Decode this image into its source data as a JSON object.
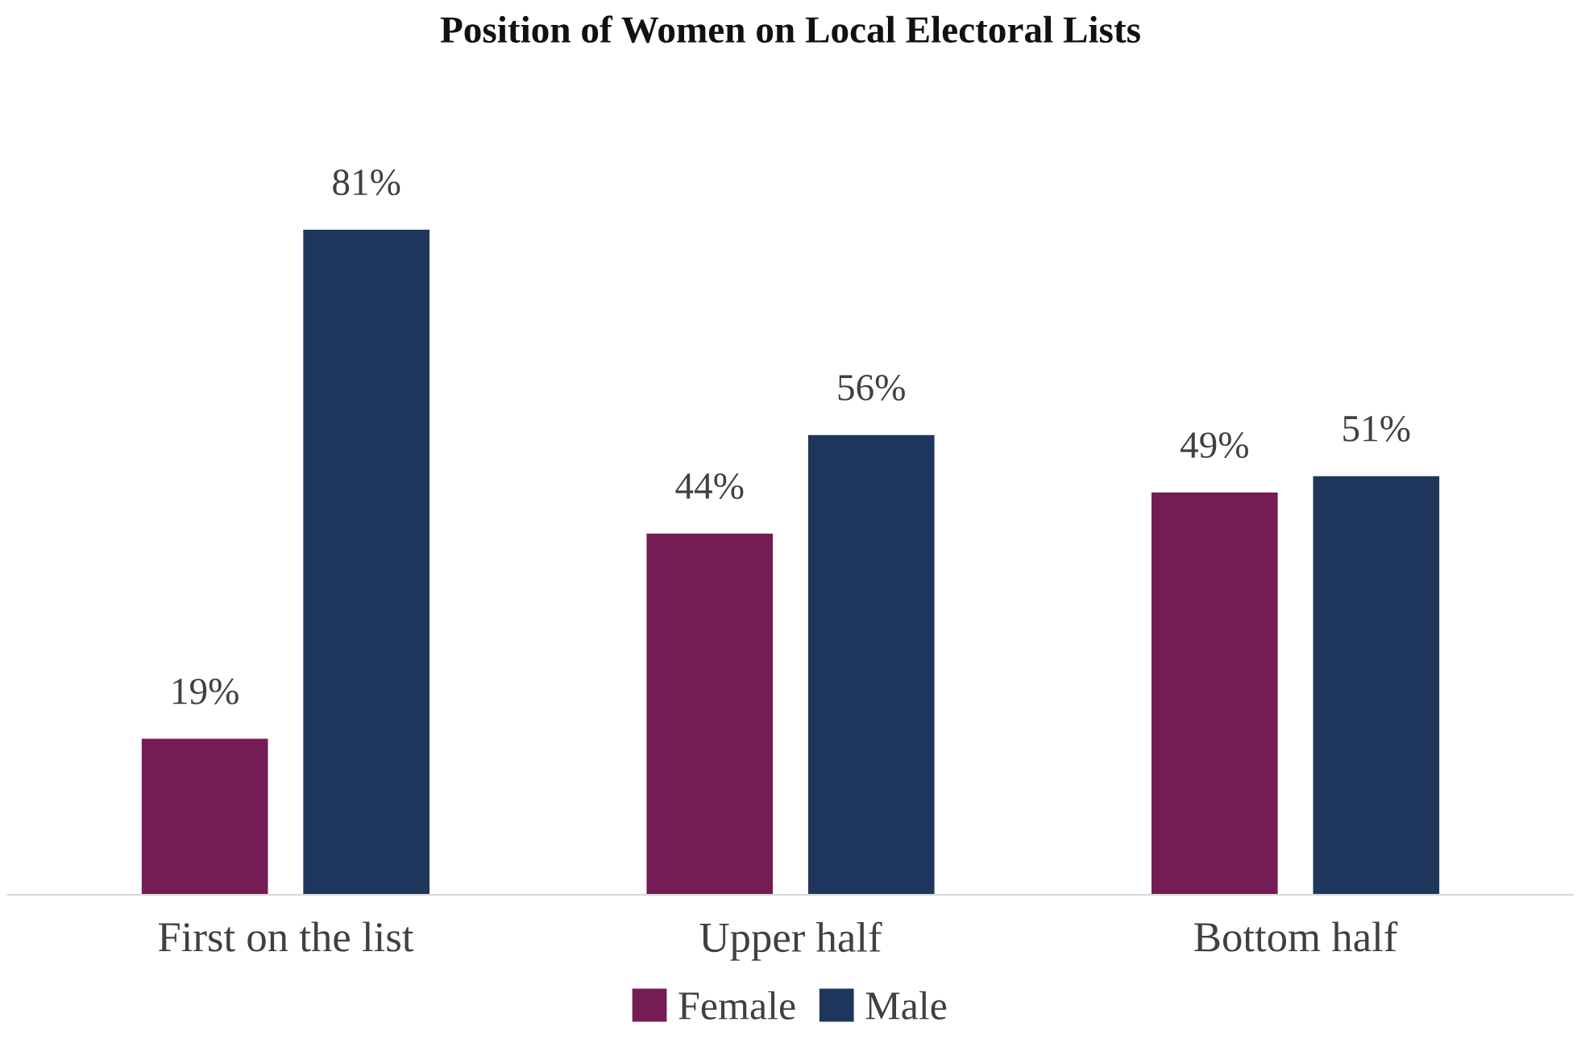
{
  "chart_data": {
    "type": "bar",
    "title": "Position of Women on Local Electoral Lists",
    "categories": [
      "First on the list",
      "Upper half",
      "Bottom half"
    ],
    "series": [
      {
        "name": "Female",
        "color": "#751c54",
        "values": [
          19,
          44,
          49
        ],
        "value_labels": [
          "19%",
          "44%",
          "49%"
        ]
      },
      {
        "name": "Male",
        "color": "#1f365c",
        "values": [
          81,
          56,
          51
        ],
        "value_labels": [
          "81%",
          "56%",
          "51%"
        ]
      }
    ],
    "legend": "bottom"
  }
}
